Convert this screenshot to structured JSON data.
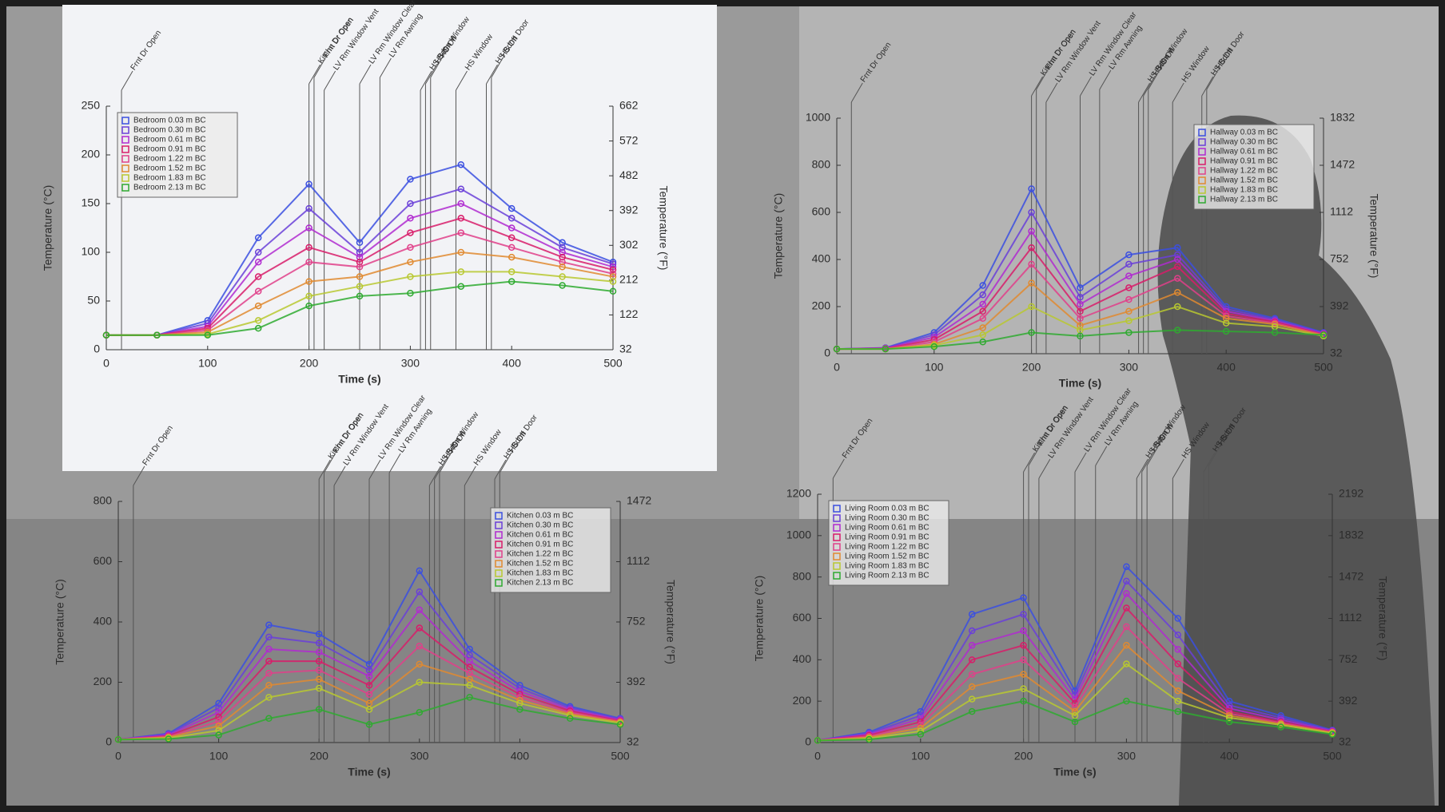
{
  "chart_data": [
    {
      "type": "line",
      "xlabel": "Time (s)",
      "ylabel": "Temperature (°C)",
      "y2label": "Temperature (°F)",
      "xlim": [
        0,
        500
      ],
      "xticks": [
        0,
        100,
        200,
        300,
        400,
        500
      ],
      "ylim": [
        0,
        250
      ],
      "yticks": [
        0,
        50,
        100,
        150,
        200,
        250
      ],
      "y2lim": [
        32,
        662
      ],
      "y2ticks": [
        32,
        122,
        212,
        302,
        392,
        482,
        572,
        662
      ],
      "legend": "upper left",
      "x": [
        0,
        50,
        100,
        150,
        200,
        250,
        300,
        350,
        400,
        450,
        500
      ],
      "events": [
        {
          "label": "Frnt Dr Open",
          "x": 15
        },
        {
          "label": "Kitchn Dr Open",
          "x": 200
        },
        {
          "label": "Frnt Dr Open",
          "x": 205
        },
        {
          "label": "LV Rm Window Vent",
          "x": 215
        },
        {
          "label": "LV Rm Window Clear",
          "x": 250
        },
        {
          "label": "LV Rm Awning",
          "x": 270
        },
        {
          "label": "HS Bdrm Window",
          "x": 310
        },
        {
          "label": "HS On",
          "x": 315
        },
        {
          "label": "HS Off",
          "x": 320
        },
        {
          "label": "HS Window",
          "x": 345
        },
        {
          "label": "HS Bdrm Door",
          "x": 375
        },
        {
          "label": "HS Off",
          "x": 380
        }
      ],
      "series": [
        {
          "name": "Bedroom 0.03 m BC",
          "color": "#3b4fe0",
          "values": [
            15,
            15,
            30,
            115,
            170,
            110,
            175,
            190,
            145,
            110,
            90
          ]
        },
        {
          "name": "Bedroom 0.30 m BC",
          "color": "#6a3fd8",
          "values": [
            15,
            15,
            27,
            100,
            145,
            100,
            150,
            165,
            135,
            105,
            88
          ]
        },
        {
          "name": "Bedroom 0.61 m BC",
          "color": "#b02ad0",
          "values": [
            15,
            15,
            24,
            90,
            125,
            95,
            135,
            150,
            125,
            100,
            85
          ]
        },
        {
          "name": "Bedroom 0.91 m BC",
          "color": "#d81c6a",
          "values": [
            15,
            15,
            22,
            75,
            105,
            90,
            120,
            135,
            115,
            95,
            82
          ]
        },
        {
          "name": "Bedroom 1.22 m BC",
          "color": "#e0408a",
          "values": [
            15,
            15,
            20,
            60,
            90,
            85,
            105,
            120,
            105,
            90,
            78
          ]
        },
        {
          "name": "Bedroom 1.52 m BC",
          "color": "#e08a30",
          "values": [
            15,
            15,
            18,
            45,
            70,
            75,
            90,
            100,
            95,
            85,
            75
          ]
        },
        {
          "name": "Bedroom 1.83 m BC",
          "color": "#b8c830",
          "values": [
            15,
            15,
            16,
            30,
            55,
            65,
            75,
            80,
            80,
            75,
            70
          ]
        },
        {
          "name": "Bedroom 2.13 m BC",
          "color": "#2faa30",
          "values": [
            15,
            15,
            15,
            22,
            45,
            55,
            58,
            65,
            70,
            66,
            60
          ]
        }
      ]
    },
    {
      "type": "line",
      "xlabel": "Time (s)",
      "ylabel": "Temperature (°C)",
      "y2label": "Temperature (°F)",
      "xlim": [
        0,
        500
      ],
      "xticks": [
        0,
        100,
        200,
        300,
        400,
        500
      ],
      "ylim": [
        0,
        1000
      ],
      "yticks": [
        0,
        200,
        400,
        600,
        800,
        1000
      ],
      "y2lim": [
        32,
        1832
      ],
      "y2ticks": [
        32,
        392,
        752,
        1112,
        1472,
        1832
      ],
      "legend": "upper right",
      "x": [
        0,
        50,
        100,
        150,
        200,
        250,
        300,
        350,
        400,
        450,
        500
      ],
      "events": [
        {
          "label": "Frnt Dr Open",
          "x": 15
        },
        {
          "label": "Kitchn Dr Open",
          "x": 200
        },
        {
          "label": "Frnt Dr Open",
          "x": 205
        },
        {
          "label": "LV Rm Window Vent",
          "x": 215
        },
        {
          "label": "LV Rm Window Clear",
          "x": 250
        },
        {
          "label": "LV Rm Awning",
          "x": 270
        },
        {
          "label": "HS Bdrm Window",
          "x": 310
        },
        {
          "label": "HS On",
          "x": 315
        },
        {
          "label": "HS Off",
          "x": 320
        },
        {
          "label": "HS Window",
          "x": 345
        },
        {
          "label": "HS Bdrm Door",
          "x": 375
        },
        {
          "label": "HS Off",
          "x": 380
        }
      ],
      "series": [
        {
          "name": "Hallway 0.03 m BC",
          "color": "#3b4fe0",
          "values": [
            20,
            25,
            90,
            290,
            700,
            280,
            420,
            450,
            200,
            150,
            90
          ]
        },
        {
          "name": "Hallway 0.30 m BC",
          "color": "#6a3fd8",
          "values": [
            20,
            24,
            80,
            250,
            600,
            240,
            380,
            420,
            190,
            145,
            88
          ]
        },
        {
          "name": "Hallway 0.61 m BC",
          "color": "#b02ad0",
          "values": [
            20,
            23,
            70,
            210,
            520,
            210,
            330,
            400,
            180,
            140,
            85
          ]
        },
        {
          "name": "Hallway 0.91 m BC",
          "color": "#d81c6a",
          "values": [
            20,
            22,
            60,
            180,
            450,
            180,
            280,
            370,
            170,
            135,
            82
          ]
        },
        {
          "name": "Hallway 1.22 m BC",
          "color": "#e0408a",
          "values": [
            20,
            21,
            50,
            150,
            380,
            150,
            230,
            320,
            160,
            130,
            80
          ]
        },
        {
          "name": "Hallway 1.52 m BC",
          "color": "#e08a30",
          "values": [
            20,
            20,
            40,
            110,
            300,
            120,
            180,
            260,
            150,
            125,
            78
          ]
        },
        {
          "name": "Hallway 1.83 m BC",
          "color": "#b8c830",
          "values": [
            20,
            20,
            35,
            80,
            200,
            100,
            140,
            200,
            130,
            115,
            75
          ]
        },
        {
          "name": "Hallway 2.13 m BC",
          "color": "#2faa30",
          "values": [
            20,
            20,
            30,
            50,
            90,
            75,
            90,
            100,
            95,
            90,
            80
          ]
        }
      ]
    },
    {
      "type": "line",
      "xlabel": "Time (s)",
      "ylabel": "Temperature (°C)",
      "y2label": "Temperature (°F)",
      "xlim": [
        0,
        500
      ],
      "xticks": [
        0,
        100,
        200,
        300,
        400,
        500
      ],
      "ylim": [
        0,
        800
      ],
      "yticks": [
        0,
        200,
        400,
        600,
        800
      ],
      "y2lim": [
        32,
        1472
      ],
      "y2ticks": [
        32,
        392,
        752,
        1112,
        1472
      ],
      "legend": "upper right",
      "x": [
        0,
        50,
        100,
        150,
        200,
        250,
        300,
        350,
        400,
        450,
        500
      ],
      "events": [
        {
          "label": "Frnt Dr Open",
          "x": 15
        },
        {
          "label": "Kitchn Dr Open",
          "x": 200
        },
        {
          "label": "Frnt Dr Open",
          "x": 205
        },
        {
          "label": "LV Rm Window Vent",
          "x": 215
        },
        {
          "label": "LV Rm Window Clear",
          "x": 250
        },
        {
          "label": "LV Rm Awning",
          "x": 270
        },
        {
          "label": "HS Bdrm Window",
          "x": 310
        },
        {
          "label": "HS On",
          "x": 315
        },
        {
          "label": "HS Off",
          "x": 320
        },
        {
          "label": "HS Window",
          "x": 345
        },
        {
          "label": "HS Bdrm Door",
          "x": 375
        },
        {
          "label": "HS Off",
          "x": 380
        }
      ],
      "series": [
        {
          "name": "Kitchen 0.03 m BC",
          "color": "#3b4fe0",
          "values": [
            10,
            30,
            130,
            390,
            360,
            260,
            570,
            310,
            190,
            120,
            80
          ]
        },
        {
          "name": "Kitchen 0.30 m BC",
          "color": "#6a3fd8",
          "values": [
            10,
            28,
            115,
            350,
            330,
            240,
            500,
            290,
            180,
            115,
            78
          ]
        },
        {
          "name": "Kitchen 0.61 m BC",
          "color": "#b02ad0",
          "values": [
            10,
            25,
            100,
            310,
            300,
            220,
            440,
            270,
            170,
            110,
            75
          ]
        },
        {
          "name": "Kitchen 0.91 m BC",
          "color": "#d81c6a",
          "values": [
            10,
            22,
            85,
            270,
            270,
            190,
            380,
            250,
            160,
            105,
            72
          ]
        },
        {
          "name": "Kitchen 1.22 m BC",
          "color": "#e0408a",
          "values": [
            10,
            20,
            70,
            230,
            240,
            160,
            320,
            230,
            150,
            100,
            70
          ]
        },
        {
          "name": "Kitchen 1.52 m BC",
          "color": "#e08a30",
          "values": [
            10,
            18,
            55,
            190,
            210,
            130,
            260,
            210,
            140,
            95,
            68
          ]
        },
        {
          "name": "Kitchen 1.83 m BC",
          "color": "#b8c830",
          "values": [
            10,
            15,
            40,
            150,
            180,
            110,
            200,
            190,
            130,
            90,
            65
          ]
        },
        {
          "name": "Kitchen 2.13 m BC",
          "color": "#2faa30",
          "values": [
            10,
            12,
            25,
            80,
            110,
            60,
            100,
            150,
            110,
            80,
            60
          ]
        }
      ]
    },
    {
      "type": "line",
      "xlabel": "Time (s)",
      "ylabel": "Temperature (°C)",
      "y2label": "Temperature (°F)",
      "xlim": [
        0,
        500
      ],
      "xticks": [
        0,
        100,
        200,
        300,
        400,
        500
      ],
      "ylim": [
        0,
        1200
      ],
      "yticks": [
        0,
        200,
        400,
        600,
        800,
        1000,
        1200
      ],
      "y2lim": [
        32,
        2192
      ],
      "y2ticks": [
        32,
        392,
        752,
        1112,
        1472,
        1832,
        2192
      ],
      "legend": "upper left",
      "x": [
        0,
        50,
        100,
        150,
        200,
        250,
        300,
        350,
        400,
        450,
        500
      ],
      "events": [
        {
          "label": "Frnt Dr Open",
          "x": 15
        },
        {
          "label": "Kitchn Dr Open",
          "x": 200
        },
        {
          "label": "Frnt Dr Open",
          "x": 205
        },
        {
          "label": "LV Rm Window Vent",
          "x": 215
        },
        {
          "label": "LV Rm Window Clear",
          "x": 250
        },
        {
          "label": "LV Rm Awning",
          "x": 270
        },
        {
          "label": "HS Bdrm Window",
          "x": 310
        },
        {
          "label": "HS On",
          "x": 315
        },
        {
          "label": "HS Off",
          "x": 320
        },
        {
          "label": "HS Window",
          "x": 345
        },
        {
          "label": "HS Bdrm Door",
          "x": 375
        },
        {
          "label": "HS Off",
          "x": 380
        }
      ],
      "series": [
        {
          "name": "Living Room 0.03 m BC",
          "color": "#3b4fe0",
          "values": [
            10,
            50,
            150,
            620,
            700,
            250,
            850,
            600,
            200,
            130,
            60
          ]
        },
        {
          "name": "Living Room 0.30 m BC",
          "color": "#6a3fd8",
          "values": [
            10,
            45,
            130,
            540,
            620,
            230,
            780,
            520,
            180,
            120,
            58
          ]
        },
        {
          "name": "Living Room 0.61 m BC",
          "color": "#b02ad0",
          "values": [
            10,
            40,
            115,
            470,
            540,
            210,
            720,
            450,
            165,
            110,
            55
          ]
        },
        {
          "name": "Living Room 0.91 m BC",
          "color": "#d81c6a",
          "values": [
            10,
            35,
            100,
            400,
            470,
            190,
            650,
            380,
            150,
            100,
            52
          ]
        },
        {
          "name": "Living Room 1.22 m BC",
          "color": "#e0408a",
          "values": [
            10,
            30,
            85,
            330,
            400,
            170,
            560,
            310,
            140,
            95,
            50
          ]
        },
        {
          "name": "Living Room 1.52 m BC",
          "color": "#e08a30",
          "values": [
            10,
            25,
            70,
            270,
            330,
            150,
            470,
            250,
            130,
            90,
            48
          ]
        },
        {
          "name": "Living Room 1.83 m BC",
          "color": "#b8c830",
          "values": [
            10,
            20,
            55,
            210,
            260,
            130,
            380,
            200,
            120,
            85,
            45
          ]
        },
        {
          "name": "Living Room 2.13 m BC",
          "color": "#2faa30",
          "values": [
            10,
            15,
            40,
            150,
            200,
            100,
            200,
            150,
            100,
            75,
            40
          ]
        }
      ]
    }
  ]
}
